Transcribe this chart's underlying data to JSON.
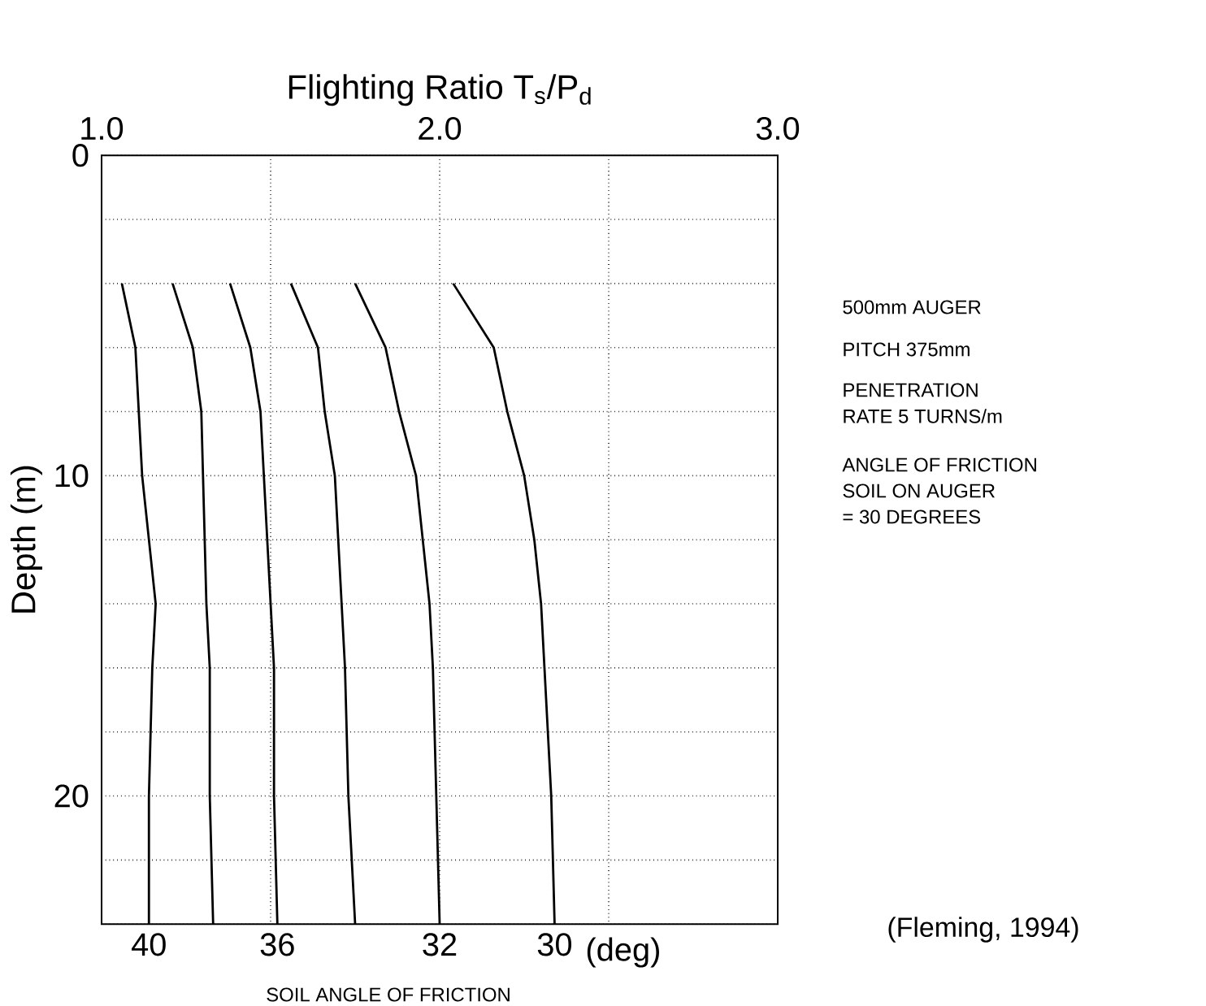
{
  "chart_data": {
    "type": "line",
    "xlabel": "Flighting Ratio T$_{s}$/P$_{d}$",
    "ylabel": "Depth (m)",
    "xlim": [
      1,
      3
    ],
    "xticks": [
      {
        "value": 1,
        "label": "1.0"
      },
      {
        "value": 1.5,
        "label": null
      },
      {
        "value": 2,
        "label": "2.0"
      },
      {
        "value": 2.5,
        "label": null
      },
      {
        "value": 3,
        "label": "3.0"
      }
    ],
    "ylim": [
      24,
      0
    ],
    "yticks": [
      0,
      {
        "value": 2,
        "label": null
      },
      {
        "value": 4,
        "label": null
      },
      {
        "value": 6,
        "label": null
      },
      {
        "value": 8,
        "label": null
      },
      10,
      {
        "value": 12,
        "label": null
      },
      {
        "value": 14,
        "label": null
      },
      {
        "value": 16,
        "label": null
      },
      {
        "value": 18,
        "label": null
      },
      20,
      {
        "value": 22,
        "label": null
      },
      {
        "value": 24,
        "label": null
      }
    ],
    "grid": true,
    "line_style": "solid",
    "color": "#000000",
    "series": [
      {
        "name": "40",
        "x": [
          1.06,
          1.1,
          1.11,
          1.12,
          1.14,
          1.16,
          1.15,
          1.14,
          1.14
        ],
        "values": [
          4,
          6,
          8,
          10,
          12,
          14,
          16,
          20,
          24
        ]
      },
      {
        "name": null,
        "x": [
          1.21,
          1.27,
          1.295,
          1.3,
          1.305,
          1.31,
          1.32,
          1.32,
          1.33
        ],
        "values": [
          4,
          6,
          8,
          10,
          12,
          14,
          16,
          20,
          24
        ]
      },
      {
        "name": "36",
        "x": [
          1.38,
          1.44,
          1.47,
          1.48,
          1.49,
          1.5,
          1.51,
          1.51,
          1.52
        ],
        "values": [
          4,
          6,
          8,
          10,
          12,
          14,
          16,
          20,
          24
        ]
      },
      {
        "name": null,
        "x": [
          1.56,
          1.64,
          1.66,
          1.69,
          1.7,
          1.71,
          1.72,
          1.73,
          1.75
        ],
        "values": [
          4,
          6,
          8,
          10,
          12,
          14,
          16,
          20,
          24
        ]
      },
      {
        "name": "32",
        "x": [
          1.75,
          1.84,
          1.88,
          1.93,
          1.95,
          1.97,
          1.98,
          1.99,
          2.0
        ],
        "values": [
          4,
          6,
          8,
          10,
          12,
          14,
          16,
          20,
          24
        ]
      },
      {
        "name": "30",
        "x": [
          2.04,
          2.16,
          2.2,
          2.25,
          2.28,
          2.3,
          2.31,
          2.33,
          2.34
        ],
        "values": [
          4,
          6,
          8,
          10,
          12,
          14,
          16,
          20,
          24
        ]
      }
    ],
    "annotations": [
      "500mm AUGER",
      "PITCH 375mm",
      "PENETRATION",
      "RATE 5 TURNS/m",
      "ANGLE OF FRICTION",
      "SOIL ON AUGER",
      "= 30 DEGREES",
      "(Fleming, 1994)",
      "(deg)",
      "SOIL ANGLE OF FRICTION"
    ]
  }
}
